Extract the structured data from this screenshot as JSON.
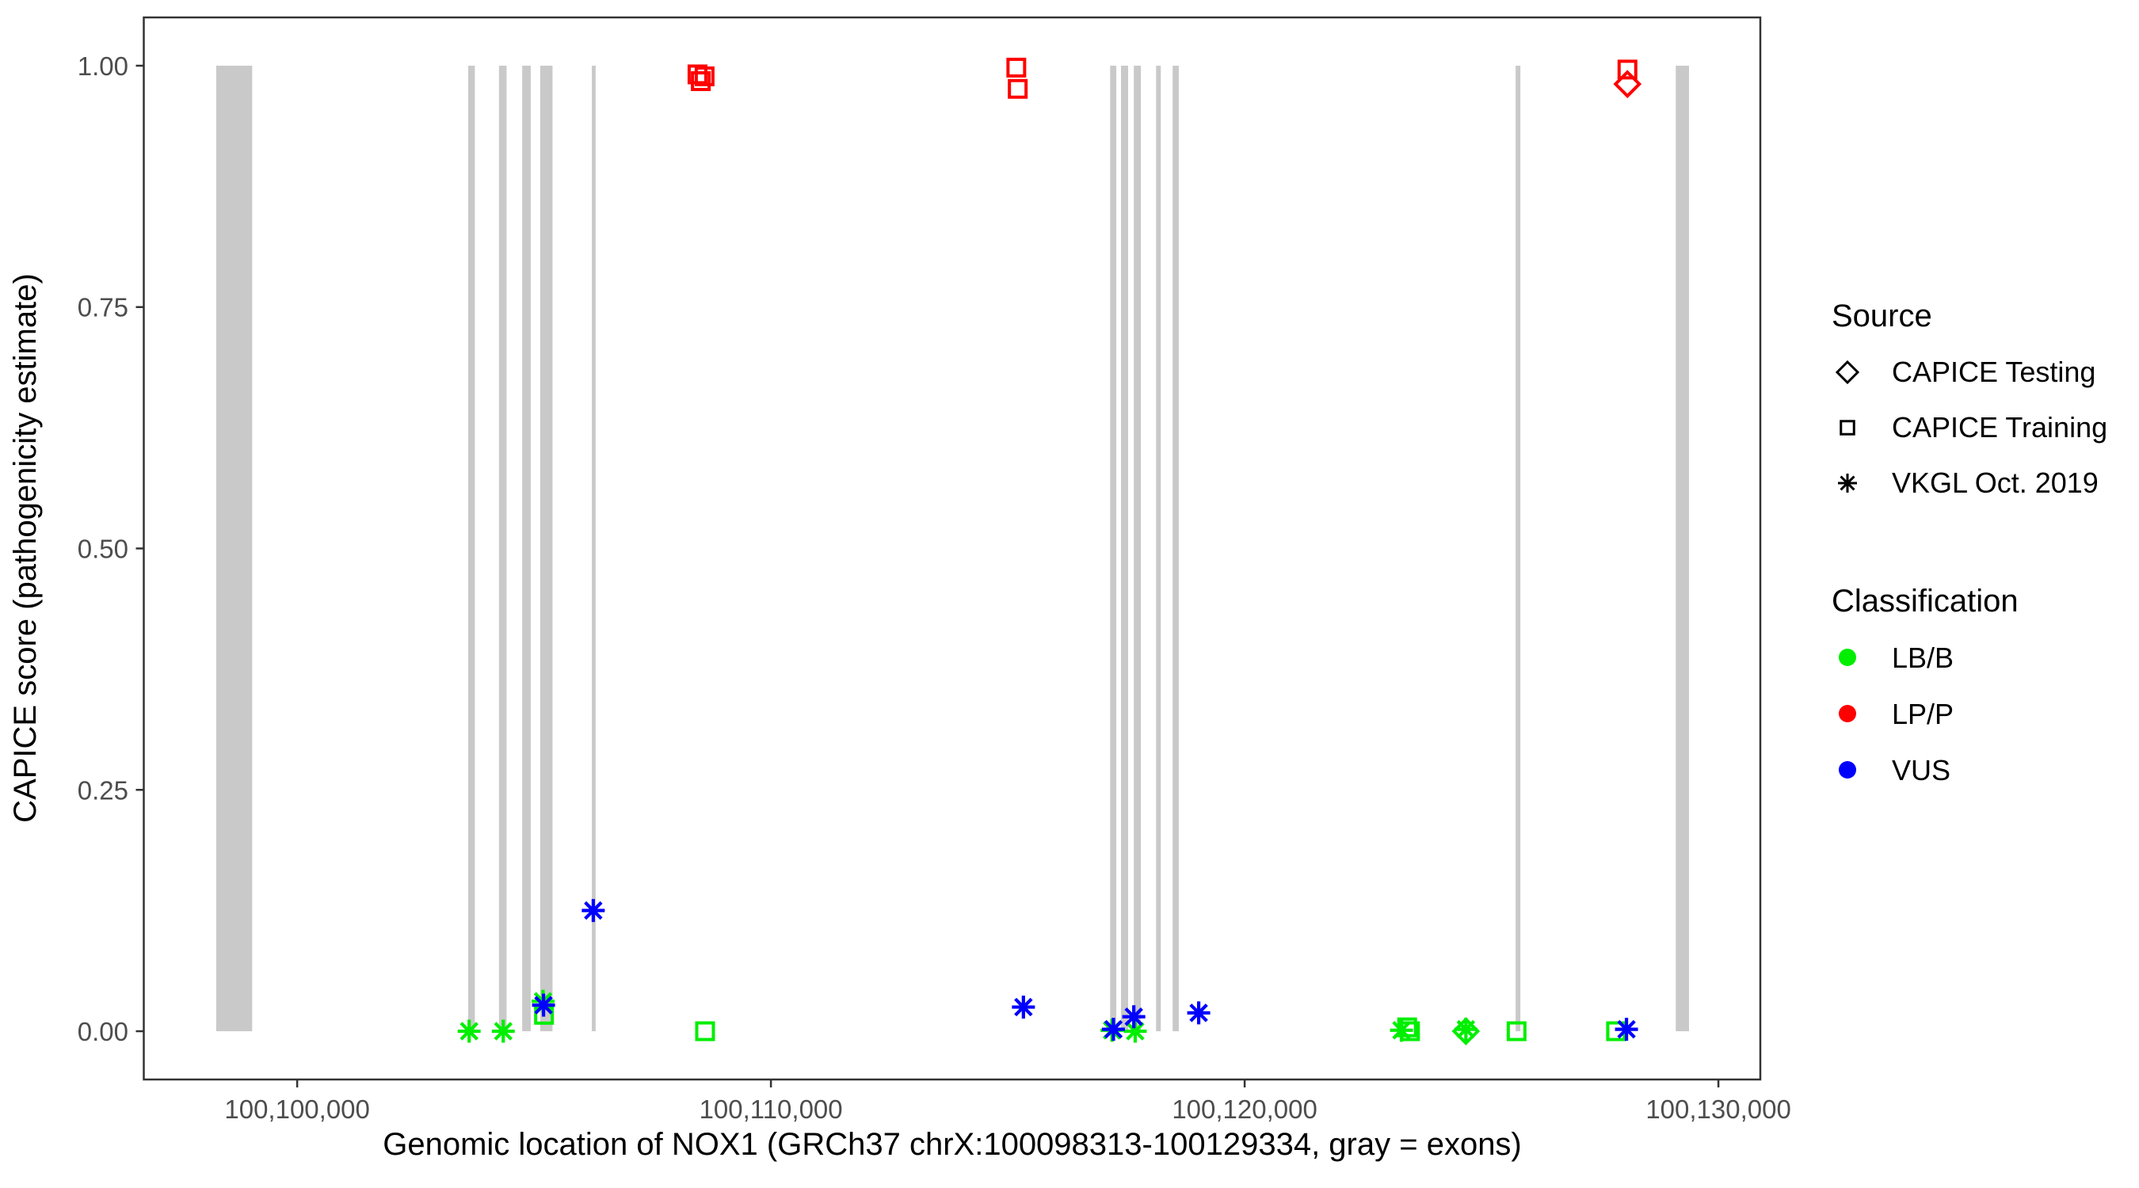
{
  "colors": {
    "background": "#FFFFFF",
    "panel_border": "#333333",
    "axis_tick_text": "#4D4D4D",
    "axis_title_text": "#000000",
    "exon": "#C9C9C9",
    "lbb_green": "#00EE00",
    "lpp_red": "#FF0000",
    "vus_blue": "#0000FF",
    "legend_symbol_black": "#000000"
  },
  "chart_data": {
    "type": "scatter",
    "title": "",
    "xlabel": "Genomic location of NOX1 (GRCh37 chrX:100098313-100129334, gray = exons)",
    "ylabel": "CAPICE score (pathogenicity estimate)",
    "xlim": [
      100096762,
      100130885
    ],
    "ylim": [
      -0.05,
      1.05
    ],
    "grid": "off",
    "x_ticks": [
      {
        "value": 100100000,
        "label": "100,100,000"
      },
      {
        "value": 100110000,
        "label": "100,110,000"
      },
      {
        "value": 100120000,
        "label": "100,120,000"
      },
      {
        "value": 100130000,
        "label": "100,130,000"
      }
    ],
    "y_ticks": [
      {
        "value": 0.0,
        "label": "0.00"
      },
      {
        "value": 0.25,
        "label": "0.25"
      },
      {
        "value": 0.5,
        "label": "0.50"
      },
      {
        "value": 0.75,
        "label": "0.75"
      },
      {
        "value": 1.0,
        "label": "1.00"
      }
    ],
    "exons_note": "gray bars span score 0 to 1, genomic start/end in bp",
    "exons": [
      {
        "start": 100098290,
        "end": 100099050
      },
      {
        "start": 100103610,
        "end": 100103750
      },
      {
        "start": 100104260,
        "end": 100104420
      },
      {
        "start": 100104750,
        "end": 100104930
      },
      {
        "start": 100105130,
        "end": 100105390
      },
      {
        "start": 100106220,
        "end": 100106300
      },
      {
        "start": 100117160,
        "end": 100117290
      },
      {
        "start": 100117390,
        "end": 100117540
      },
      {
        "start": 100117660,
        "end": 100117810
      },
      {
        "start": 100118130,
        "end": 100118230
      },
      {
        "start": 100118480,
        "end": 100118610
      },
      {
        "start": 100125720,
        "end": 100125820
      },
      {
        "start": 100129100,
        "end": 100129380
      }
    ],
    "points_format": [
      "genomic_position_bp",
      "capice_score"
    ],
    "series": [
      {
        "source": "CAPICE Training",
        "classification": "LP/P",
        "shape": "square",
        "color": "#FF0000",
        "points": [
          [
            100108450,
            0.991
          ],
          [
            100108600,
            0.989
          ],
          [
            100108520,
            0.984
          ],
          [
            100115180,
            0.998
          ],
          [
            100115210,
            0.976
          ],
          [
            100128080,
            0.996
          ]
        ]
      },
      {
        "source": "CAPICE Testing",
        "classification": "LP/P",
        "shape": "diamond",
        "color": "#FF0000",
        "points": [
          [
            100128080,
            0.981
          ]
        ]
      },
      {
        "source": "CAPICE Training",
        "classification": "LB/B",
        "shape": "square",
        "color": "#00EE00",
        "points": [
          [
            100105210,
            0.017
          ],
          [
            100108610,
            0.0
          ],
          [
            100123430,
            0.004
          ],
          [
            100123490,
            0.0
          ],
          [
            100125740,
            0.0
          ],
          [
            100127840,
            0.0
          ]
        ]
      },
      {
        "source": "CAPICE Testing",
        "classification": "LB/B",
        "shape": "diamond",
        "color": "#00EE00",
        "points": [
          [
            100124670,
            0.0
          ]
        ]
      },
      {
        "source": "VKGL Oct. 2019",
        "classification": "LB/B",
        "shape": "asterisk",
        "color": "#00EE00",
        "points": [
          [
            100103630,
            0.0
          ],
          [
            100104350,
            0.0
          ],
          [
            100105190,
            0.031
          ],
          [
            100117200,
            0.001
          ],
          [
            100117690,
            0.0
          ],
          [
            100123310,
            0.001
          ],
          [
            100124670,
            0.002
          ]
        ]
      },
      {
        "source": "VKGL Oct. 2019",
        "classification": "VUS",
        "shape": "asterisk",
        "color": "#0000FF",
        "points": [
          [
            100105200,
            0.027
          ],
          [
            100106250,
            0.125
          ],
          [
            100115330,
            0.025
          ],
          [
            100117230,
            0.002
          ],
          [
            100117660,
            0.015
          ],
          [
            100119030,
            0.019
          ],
          [
            100128060,
            0.002
          ]
        ]
      }
    ],
    "legend": {
      "position": "right",
      "source_group": {
        "title": "Source",
        "items": [
          {
            "label": "CAPICE Testing",
            "shape": "diamond"
          },
          {
            "label": "CAPICE Training",
            "shape": "square"
          },
          {
            "label": "VKGL Oct. 2019",
            "shape": "asterisk"
          }
        ]
      },
      "classification_group": {
        "title": "Classification",
        "items": [
          {
            "label": "LB/B",
            "color": "#00EE00"
          },
          {
            "label": "LP/P",
            "color": "#FF0000"
          },
          {
            "label": "VUS",
            "color": "#0000FF"
          }
        ]
      }
    }
  }
}
